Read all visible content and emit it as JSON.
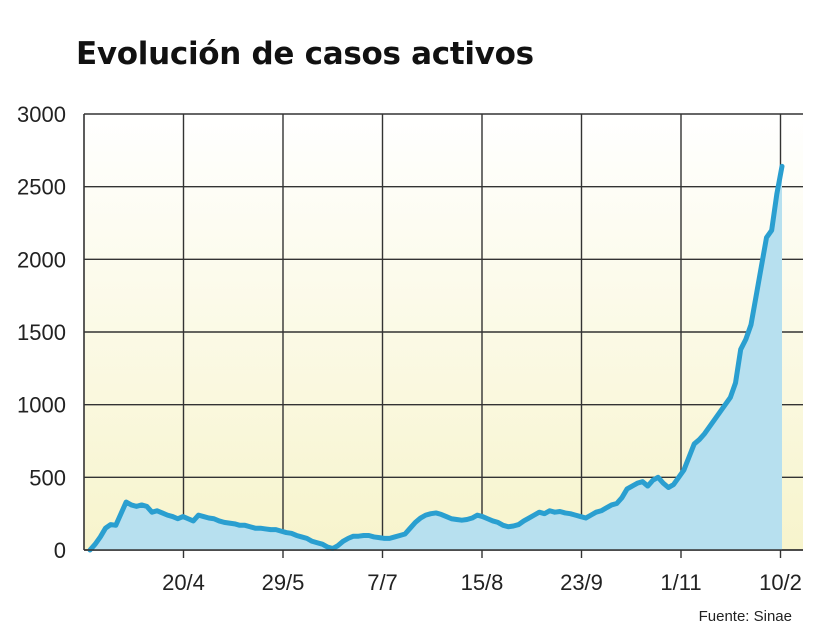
{
  "chart_data": {
    "type": "area",
    "title": "Evolución de casos activos",
    "source": "Fuente: Sinae",
    "xlabel": "",
    "ylabel": "",
    "ylim": [
      0,
      3000
    ],
    "yticks": [
      0,
      500,
      1000,
      1500,
      2000,
      2500,
      3000
    ],
    "xticks": [
      "20/4",
      "29/5",
      "7/7",
      "15/8",
      "23/9",
      "1/11",
      "10/2"
    ],
    "grid": true,
    "colors": {
      "line": "#2a9fd0",
      "fill": "#b7e0ef",
      "background_top": "#ffffff",
      "background_bottom": "#f7f4cc",
      "grid": "#333333"
    },
    "series": [
      {
        "values": [
          0,
          40,
          90,
          150,
          175,
          170,
          250,
          330,
          310,
          300,
          310,
          300,
          260,
          270,
          255,
          240,
          230,
          215,
          230,
          215,
          200,
          240,
          230,
          220,
          215,
          200,
          190,
          185,
          180,
          170,
          170,
          160,
          150,
          150,
          145,
          140,
          140,
          130,
          120,
          115,
          100,
          90,
          80,
          60,
          50,
          40,
          20,
          10,
          30,
          60,
          80,
          95,
          95,
          100,
          100,
          90,
          85,
          80,
          80,
          90,
          100,
          110,
          150,
          190,
          220,
          240,
          250,
          255,
          245,
          230,
          215,
          210,
          205,
          210,
          220,
          240,
          230,
          215,
          200,
          190,
          170,
          160,
          165,
          175,
          200,
          220,
          240,
          260,
          250,
          270,
          260,
          265,
          255,
          250,
          240,
          230,
          220,
          240,
          260,
          270,
          290,
          310,
          320,
          360,
          420,
          440,
          460,
          470,
          440,
          480,
          500,
          460,
          430,
          450,
          500,
          550,
          640,
          730,
          760,
          800,
          850,
          900,
          950,
          1000,
          1050,
          1150,
          1380,
          1450,
          1550,
          1750,
          1950,
          2150,
          2200,
          2450,
          2640
        ]
      }
    ]
  }
}
